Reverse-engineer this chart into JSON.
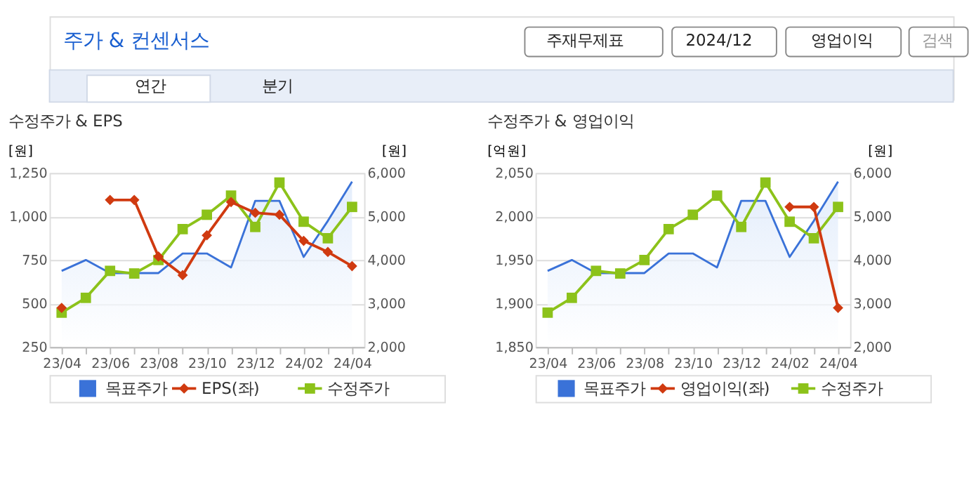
{
  "chart_data": [
    {
      "type": "line",
      "title": "수정주가 & EPS",
      "ylabel": "[원]",
      "y2label": "[원]",
      "annotations": [
        "주가 & 컨센서스",
        "주재무제표",
        "2024/12",
        "영업이익",
        "검색",
        "연간",
        "분기"
      ],
      "categories": [
        "23/04",
        null,
        "23/06",
        null,
        "23/08",
        null,
        "23/10",
        null,
        "23/12",
        null,
        "24/02",
        null,
        "24/04"
      ],
      "series": [
        {
          "name": "목표주가",
          "type": "area",
          "axis": "y2",
          "color": "#3a72d8",
          "marker": "none",
          "values": [
            3750,
            4000,
            3700,
            3700,
            3700,
            4150,
            4150,
            3830,
            5360,
            5360,
            4070,
            4900,
            5800
          ]
        },
        {
          "name": "EPS(좌)",
          "color": "#d03a10",
          "marker": "diamond",
          "values": [
            475,
            null,
            1095,
            1095,
            770,
            663,
            892,
            1083,
            1021,
            1010,
            860,
            796,
            715
          ]
        },
        {
          "name": "수정주가",
          "axis": "y2",
          "color": "#8cc21a",
          "marker": "square",
          "values": [
            2790,
            3130,
            3750,
            3690,
            4000,
            4710,
            5040,
            5480,
            4760,
            5780,
            4880,
            4500,
            5220
          ]
        }
      ],
      "ylim": [
        250,
        1250
      ],
      "yticks": [
        250,
        500,
        750,
        {
          "value": 1000,
          "label": "1,000"
        },
        {
          "value": 1250,
          "label": "1,250"
        }
      ],
      "y2lim": [
        2000,
        6000
      ],
      "y2ticks": [
        {
          "value": 2000,
          "label": "2,000"
        },
        {
          "value": 3000,
          "label": "3,000"
        },
        {
          "value": 4000,
          "label": "4,000"
        },
        {
          "value": 5000,
          "label": "5,000"
        },
        {
          "value": 6000,
          "label": "6,000"
        }
      ],
      "grid": "y",
      "legend": "bottom"
    },
    {
      "type": "line",
      "title": "수정주가 & 영업이익",
      "ylabel": "[억원]",
      "y2label": "[원]",
      "categories": [
        "23/04",
        null,
        "23/06",
        null,
        "23/08",
        null,
        "23/10",
        null,
        "23/12",
        null,
        "24/02",
        null,
        "24/04"
      ],
      "series": [
        {
          "name": "목표주가",
          "type": "area",
          "axis": "y2",
          "color": "#3a72d8",
          "marker": "none",
          "values": [
            3750,
            4000,
            3700,
            3700,
            3700,
            4150,
            4150,
            3830,
            5360,
            5360,
            4070,
            4900,
            5800
          ]
        },
        {
          "name": "영업이익(좌)",
          "color": "#d03a10",
          "marker": "diamond",
          "values": [
            null,
            null,
            null,
            null,
            null,
            null,
            null,
            null,
            null,
            null,
            2011,
            2011,
            1895
          ]
        },
        {
          "name": "수정주가",
          "axis": "y2",
          "color": "#8cc21a",
          "marker": "square",
          "values": [
            2790,
            3130,
            3750,
            3690,
            4000,
            4710,
            5040,
            5480,
            4760,
            5780,
            4880,
            4500,
            5220
          ]
        }
      ],
      "ylim": [
        1850,
        2050
      ],
      "yticks": [
        {
          "value": 1850,
          "label": "1,850"
        },
        {
          "value": 1900,
          "label": "1,900"
        },
        {
          "value": 1950,
          "label": "1,950"
        },
        {
          "value": 2000,
          "label": "2,000"
        },
        {
          "value": 2050,
          "label": "2,050"
        }
      ],
      "y2lim": [
        2000,
        6000
      ],
      "y2ticks": [
        {
          "value": 2000,
          "label": "2,000"
        },
        {
          "value": 3000,
          "label": "3,000"
        },
        {
          "value": 4000,
          "label": "4,000"
        },
        {
          "value": 5000,
          "label": "5,000"
        },
        {
          "value": 6000,
          "label": "6,000"
        }
      ],
      "grid": "y",
      "legend": "bottom"
    }
  ]
}
